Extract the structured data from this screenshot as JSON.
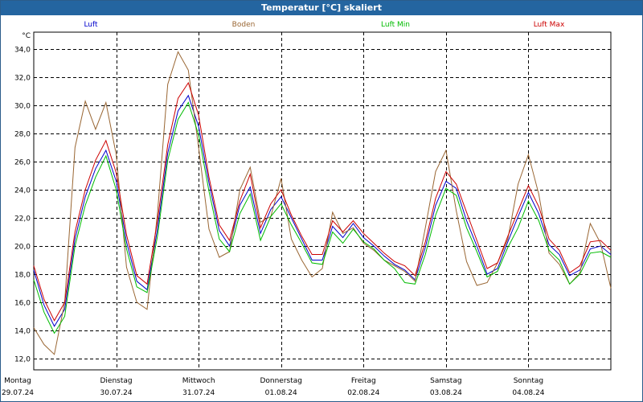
{
  "window_title": "Temperatur [°C] skaliert",
  "chart_data": {
    "type": "line",
    "title": "Temperatur [°C] skaliert",
    "unit_label": "°C",
    "ylim": [
      11.2,
      35.2
    ],
    "y_ticks": [
      "12,0",
      "14,0",
      "16,0",
      "18,0",
      "20,0",
      "22,0",
      "24,0",
      "26,0",
      "28,0",
      "30,0",
      "32,0",
      "34,0"
    ],
    "y_tick_values": [
      12,
      14,
      16,
      18,
      20,
      22,
      24,
      26,
      28,
      30,
      32,
      34
    ],
    "x_range_days": [
      0,
      7
    ],
    "grid": true,
    "day_labels": [
      {
        "day": "Montag",
        "date": "29.07.24"
      },
      {
        "day": "Dienstag",
        "date": "30.07.24"
      },
      {
        "day": "Mittwoch",
        "date": "31.07.24"
      },
      {
        "day": "Donnerstag",
        "date": "01.08.24"
      },
      {
        "day": "Freitag",
        "date": "02.08.24"
      },
      {
        "day": "Samstag",
        "date": "03.08.24"
      },
      {
        "day": "Sonntag",
        "date": "04.08.24"
      }
    ],
    "x": [
      0,
      0.125,
      0.25,
      0.375,
      0.5,
      0.625,
      0.75,
      0.875,
      1,
      1.125,
      1.25,
      1.375,
      1.5,
      1.625,
      1.75,
      1.875,
      2,
      2.125,
      2.25,
      2.375,
      2.5,
      2.625,
      2.75,
      2.875,
      3,
      3.125,
      3.25,
      3.375,
      3.5,
      3.625,
      3.75,
      3.875,
      4,
      4.125,
      4.25,
      4.375,
      4.5,
      4.625,
      4.75,
      4.875,
      5,
      5.125,
      5.25,
      5.375,
      5.5,
      5.625,
      5.75,
      5.875,
      6,
      6.125,
      6.25,
      6.375,
      6.5,
      6.625,
      6.75,
      6.875,
      7
    ],
    "series": [
      {
        "name": "Luft",
        "color": "#0000cc",
        "values": [
          18.3,
          15.8,
          14.3,
          15.5,
          20.5,
          23.5,
          25.5,
          26.8,
          24.6,
          20.3,
          17.5,
          16.9,
          21.2,
          26.6,
          29.6,
          30.7,
          28.5,
          24.5,
          21.1,
          20.0,
          22.9,
          24.2,
          20.9,
          22.6,
          23.5,
          22.0,
          20.5,
          19.0,
          19.0,
          21.4,
          20.6,
          21.6,
          20.6,
          20.0,
          19.3,
          18.7,
          18.3,
          17.6,
          19.9,
          22.9,
          24.6,
          24.1,
          21.8,
          20.0,
          18.0,
          18.4,
          20.3,
          22.1,
          23.8,
          22.3,
          20.1,
          19.4,
          17.9,
          18.3,
          19.8,
          20.0,
          19.4
        ]
      },
      {
        "name": "Boden",
        "color": "#996633",
        "values": [
          14.2,
          13.0,
          12.3,
          16.0,
          27.0,
          30.3,
          28.3,
          30.2,
          26.5,
          18.5,
          16.0,
          15.5,
          22.3,
          31.5,
          33.8,
          32.5,
          27.0,
          21.2,
          19.2,
          19.6,
          24.0,
          25.6,
          21.7,
          22.1,
          24.8,
          20.5,
          19.0,
          17.8,
          18.4,
          22.4,
          20.9,
          21.3,
          20.2,
          19.7,
          19.0,
          18.6,
          18.2,
          17.5,
          21.3,
          25.3,
          26.8,
          22.5,
          18.9,
          17.2,
          17.4,
          18.8,
          20.5,
          24.4,
          26.5,
          23.7,
          19.5,
          18.7,
          17.3,
          18.1,
          21.6,
          20.2,
          17.0
        ]
      },
      {
        "name": "Luft Min",
        "color": "#00bb00",
        "values": [
          17.6,
          15.3,
          13.8,
          15.0,
          20.0,
          22.9,
          24.9,
          26.4,
          24.0,
          19.8,
          17.1,
          16.7,
          20.7,
          26.1,
          29.0,
          30.2,
          27.9,
          23.9,
          20.5,
          19.6,
          22.3,
          23.7,
          20.4,
          22.1,
          23.0,
          21.5,
          20.2,
          18.8,
          18.7,
          21.0,
          20.2,
          21.2,
          20.3,
          19.8,
          19.0,
          18.4,
          17.4,
          17.3,
          19.4,
          22.2,
          24.1,
          23.6,
          21.3,
          19.6,
          17.8,
          18.2,
          19.9,
          21.3,
          23.2,
          21.8,
          19.7,
          19.0,
          17.3,
          18.0,
          19.5,
          19.6,
          19.2
        ]
      },
      {
        "name": "Luft Max",
        "color": "#cc0000",
        "values": [
          18.6,
          16.2,
          14.7,
          16.0,
          21.0,
          24.0,
          26.1,
          27.5,
          25.2,
          20.8,
          17.9,
          17.3,
          21.8,
          27.2,
          30.5,
          31.6,
          29.3,
          24.9,
          21.5,
          20.4,
          23.2,
          25.1,
          21.3,
          23.0,
          24.0,
          22.2,
          20.7,
          19.4,
          19.4,
          21.8,
          21.0,
          21.8,
          20.9,
          20.2,
          19.5,
          18.9,
          18.6,
          17.9,
          20.3,
          23.4,
          25.3,
          24.4,
          22.4,
          20.4,
          18.4,
          18.8,
          20.7,
          22.5,
          24.3,
          22.8,
          20.5,
          19.7,
          18.1,
          18.6,
          20.3,
          20.4,
          19.7
        ]
      }
    ]
  }
}
